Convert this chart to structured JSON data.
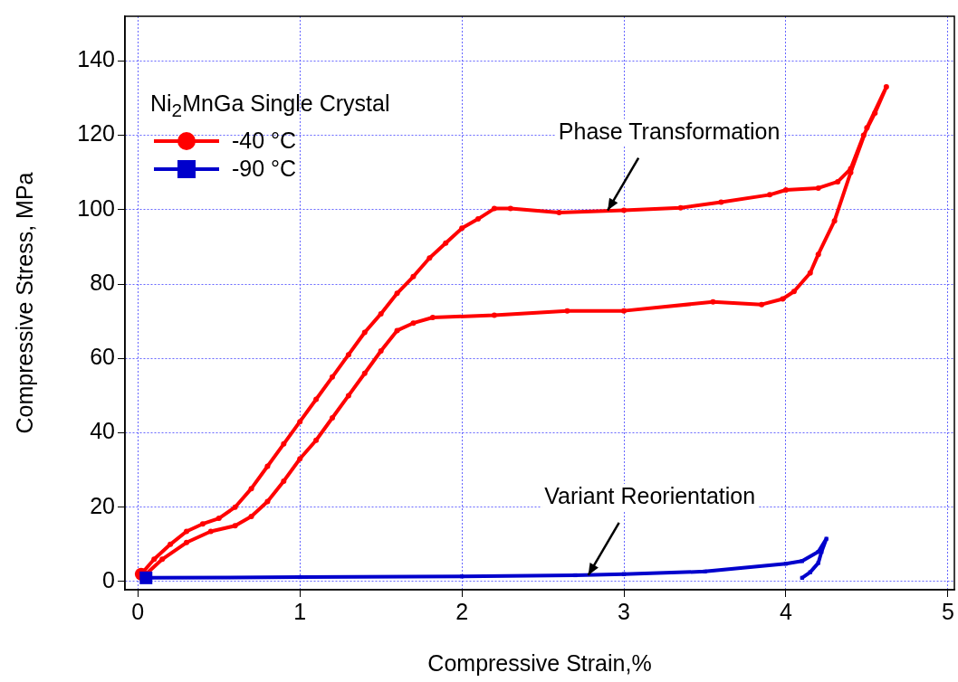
{
  "chart_data": {
    "type": "line",
    "xlabel": "Compressive Strain,%",
    "ylabel": "Compressive Stress, MPa",
    "legend_title": "Ni$_{2}$MnGa Single Crystal",
    "legend": "top left",
    "grid": true,
    "line_style": "solid",
    "xlim": [
      -0.08,
      5.04
    ],
    "xticks": [
      0,
      1,
      2,
      3,
      4,
      5
    ],
    "ylim": [
      -2.2,
      152
    ],
    "yticks": [
      0,
      20,
      40,
      60,
      80,
      100,
      120,
      140
    ],
    "annotations": [
      {
        "text": "Phase Transformation",
        "x": 2.9,
        "y": 99.8
      },
      {
        "text": "Variant Reorientation",
        "x": 2.78,
        "y": 1.7
      }
    ],
    "series": [
      {
        "name": "-40 °C",
        "color": "#ff0000",
        "marker": "circle",
        "x": [
          0.02,
          0.1,
          0.2,
          0.3,
          0.4,
          0.5,
          0.6,
          0.7,
          0.8,
          0.9,
          1.0,
          1.1,
          1.2,
          1.3,
          1.4,
          1.5,
          1.6,
          1.7,
          1.8,
          1.9,
          2.0,
          2.1,
          2.2,
          2.3,
          2.6,
          3.0,
          3.35,
          3.6,
          3.9,
          4.0,
          4.2,
          4.32,
          4.4,
          4.48,
          4.55,
          4.62,
          4.5,
          4.4,
          4.3,
          4.2,
          4.15,
          4.05,
          3.98,
          3.85,
          3.55,
          3.0,
          2.65,
          2.2,
          1.82,
          1.7,
          1.6,
          1.5,
          1.4,
          1.3,
          1.2,
          1.1,
          1.0,
          0.9,
          0.8,
          0.7,
          0.6,
          0.45,
          0.3,
          0.15,
          0.05
        ],
        "values": [
          2,
          6,
          10,
          13.5,
          15.5,
          17,
          20,
          25,
          31,
          37,
          43,
          49,
          55,
          61,
          67,
          72,
          77.5,
          82,
          87,
          91,
          95,
          97.5,
          100.3,
          100.3,
          99.2,
          99.8,
          100.5,
          102,
          104,
          105.3,
          105.8,
          107.5,
          111,
          120,
          126,
          133,
          122,
          110,
          97,
          88,
          83,
          78,
          76,
          74.5,
          75.2,
          72.8,
          72.8,
          71.6,
          71,
          69.5,
          67.5,
          62,
          56,
          50,
          44,
          38,
          33,
          27,
          21.5,
          17.5,
          15,
          13.5,
          10.5,
          6,
          2
        ]
      },
      {
        "name": "-90 °C",
        "color": "#0000cc",
        "marker": "square",
        "x": [
          0.05,
          1.0,
          2.0,
          2.7,
          3.0,
          3.5,
          4.0,
          4.1,
          4.2,
          4.25,
          4.22,
          4.2,
          4.15,
          4.1
        ],
        "values": [
          1,
          1.2,
          1.4,
          1.7,
          2,
          2.7,
          4.8,
          5.5,
          8,
          11.5,
          8,
          5,
          2.5,
          1
        ]
      }
    ]
  }
}
